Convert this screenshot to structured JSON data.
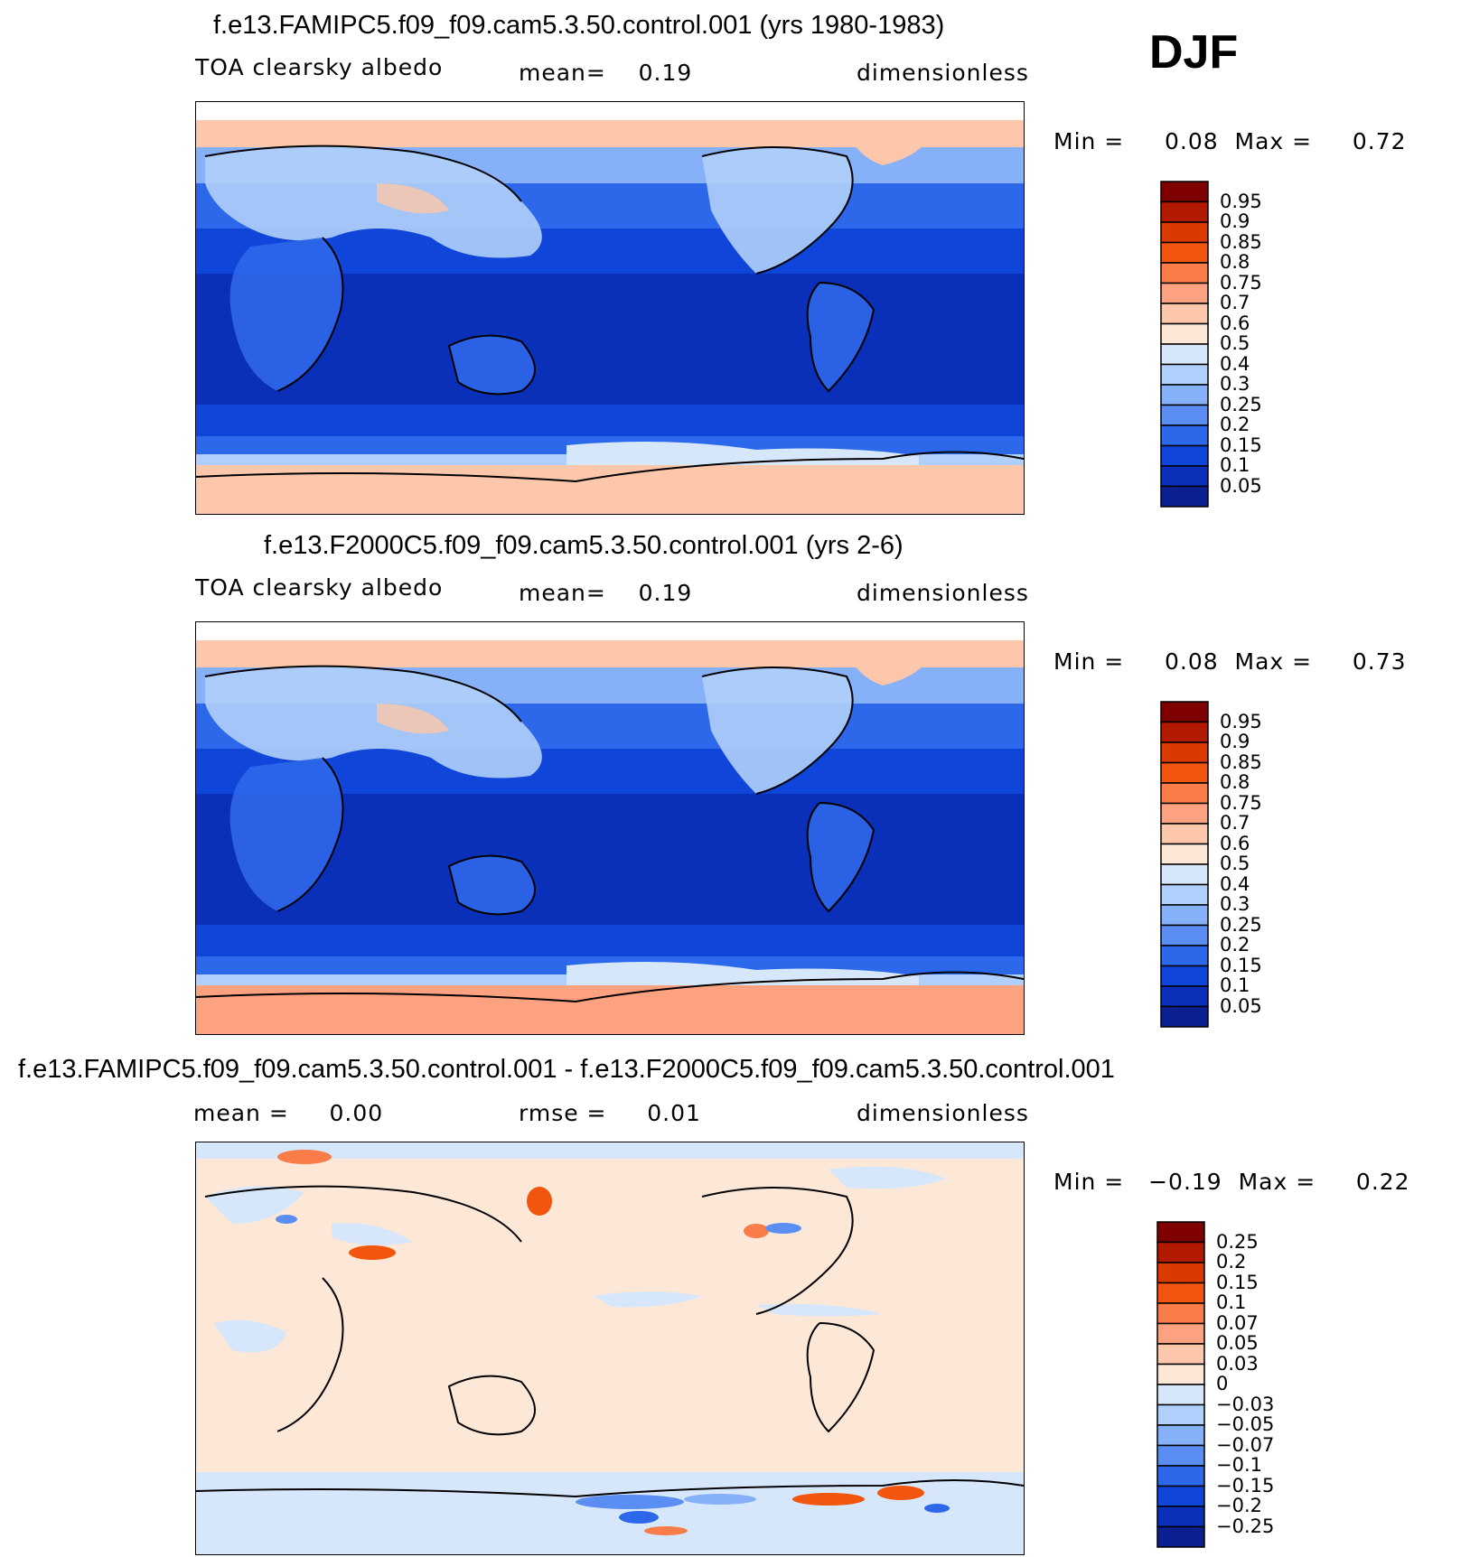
{
  "season": "DJF",
  "panels": [
    {
      "title": "f.e13.FAMIPC5.f09_f09.cam5.3.50.control.001 (yrs 1980-1983)",
      "left_label": "TOA clearsky albedo",
      "stat1": "mean=    0.19",
      "units": "dimensionless",
      "minmax": "Min =     0.08  Max =     0.72",
      "colorbar": [
        "0.95",
        "0.9",
        "0.85",
        "0.8",
        "0.75",
        "0.7",
        "0.6",
        "0.5",
        "0.4",
        "0.3",
        "0.25",
        "0.2",
        "0.15",
        "0.1",
        "0.05"
      ],
      "colors": [
        "#7f0000",
        "#b21a00",
        "#d93a00",
        "#f2550e",
        "#fa7c48",
        "#fca280",
        "#fcc7aa",
        "#fde8d8",
        "#d6e7fb",
        "#b0cffa",
        "#86b0f7",
        "#5a8ef3",
        "#2d67ea",
        "#0f45d8",
        "#0a2fb8",
        "#0a1f90"
      ]
    },
    {
      "title": "f.e13.F2000C5.f09_f09.cam5.3.50.control.001 (yrs 2-6)",
      "left_label": "TOA clearsky albedo",
      "stat1": "mean=    0.19",
      "units": "dimensionless",
      "minmax": "Min =     0.08  Max =     0.73",
      "colorbar": [
        "0.95",
        "0.9",
        "0.85",
        "0.8",
        "0.75",
        "0.7",
        "0.6",
        "0.5",
        "0.4",
        "0.3",
        "0.25",
        "0.2",
        "0.15",
        "0.1",
        "0.05"
      ],
      "colors": [
        "#7f0000",
        "#b21a00",
        "#d93a00",
        "#f2550e",
        "#fa7c48",
        "#fca280",
        "#fcc7aa",
        "#fde8d8",
        "#d6e7fb",
        "#b0cffa",
        "#86b0f7",
        "#5a8ef3",
        "#2d67ea",
        "#0f45d8",
        "#0a2fb8",
        "#0a1f90"
      ]
    },
    {
      "title": "f.e13.FAMIPC5.f09_f09.cam5.3.50.control.001 - f.e13.F2000C5.f09_f09.cam5.3.50.control.001",
      "left_label": "mean =     0.00",
      "stat1": "rmse =     0.01",
      "units": "dimensionless",
      "minmax": "Min =   −0.19  Max =     0.22",
      "colorbar": [
        "0.25",
        "0.2",
        "0.15",
        "0.1",
        "0.07",
        "0.05",
        "0.03",
        "0",
        "−0.03",
        "−0.05",
        "−0.07",
        "−0.1",
        "−0.15",
        "−0.2",
        "−0.25"
      ],
      "colors": [
        "#7f0000",
        "#b21a00",
        "#d93a00",
        "#f2550e",
        "#fa7c48",
        "#fca280",
        "#fcc7aa",
        "#fde8d8",
        "#d6e7fb",
        "#b0cffa",
        "#86b0f7",
        "#5a8ef3",
        "#2d67ea",
        "#0f45d8",
        "#0a2fb8",
        "#0a1f90"
      ]
    }
  ]
}
